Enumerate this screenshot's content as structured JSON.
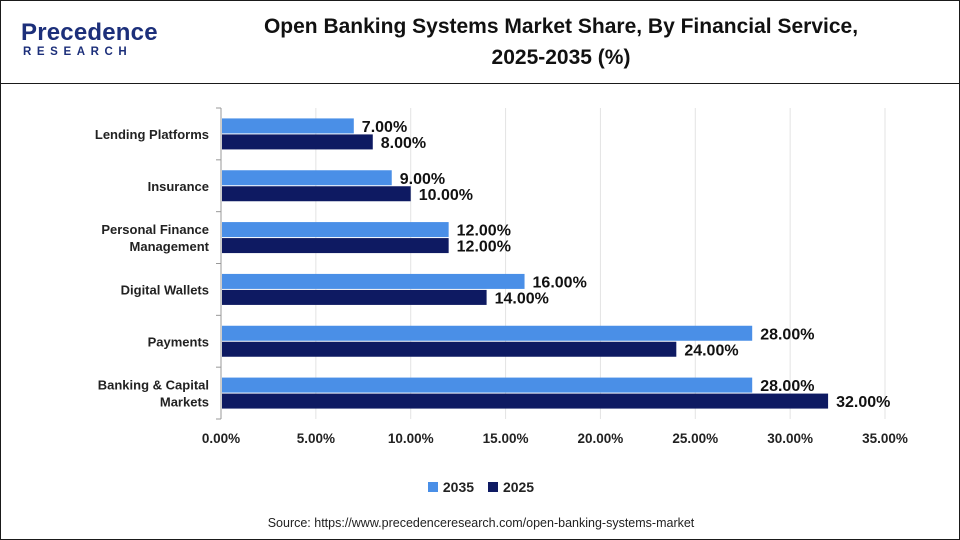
{
  "brand": {
    "name": "Precedence",
    "sub": "RESEARCH",
    "color": "#1c2f7a"
  },
  "title_line1": "Open Banking Systems Market Share, By Financial Service,",
  "title_line2": "2025-2035 (%)",
  "source": "Source: https://www.precedenceresearch.com/open-banking-systems-market",
  "chart_data": {
    "type": "bar",
    "orientation": "horizontal",
    "title": "Open Banking Systems Market Share, By Financial Service, 2025-2035 (%)",
    "categories": [
      "Lending Platforms",
      "Insurance",
      "Personal Finance Management",
      "Digital Wallets",
      "Payments",
      "Banking & Capital Markets"
    ],
    "category_lines": [
      [
        "Lending Platforms"
      ],
      [
        "Insurance"
      ],
      [
        "Personal Finance",
        "Management"
      ],
      [
        "Digital Wallets"
      ],
      [
        "Payments"
      ],
      [
        "Banking & Capital",
        "Markets"
      ]
    ],
    "series": [
      {
        "name": "2035",
        "color": "#4a8fe7",
        "values": [
          7,
          9,
          12,
          16,
          28,
          28
        ],
        "labels": [
          "7.00%",
          "9.00%",
          "12.00%",
          "16.00%",
          "28.00%",
          "28.00%"
        ]
      },
      {
        "name": "2025",
        "color": "#0e1a62",
        "values": [
          8,
          10,
          12,
          14,
          24,
          32
        ],
        "labels": [
          "8.00%",
          "10.00%",
          "12.00%",
          "14.00%",
          "24.00%",
          "32.00%"
        ]
      }
    ],
    "xlim": [
      0,
      35
    ],
    "x_ticks": [
      0,
      5,
      10,
      15,
      20,
      25,
      30,
      35
    ],
    "x_tick_labels": [
      "0.00%",
      "5.00%",
      "10.00%",
      "15.00%",
      "20.00%",
      "25.00%",
      "30.00%",
      "35.00%"
    ],
    "grid": true,
    "legend_position": "bottom"
  }
}
